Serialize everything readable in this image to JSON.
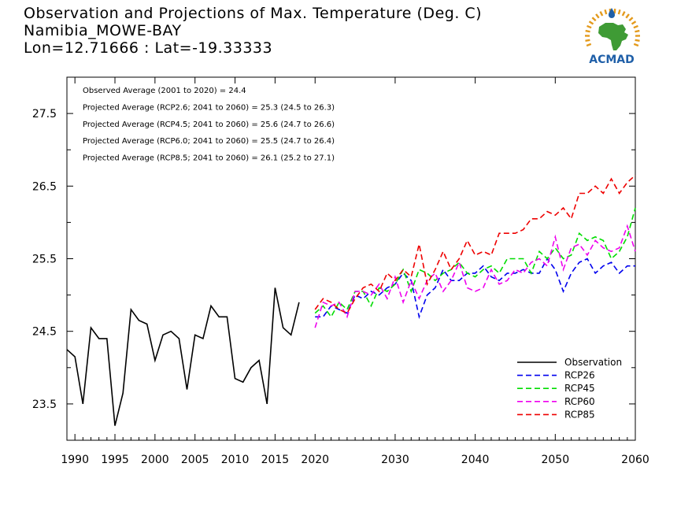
{
  "title_lines": [
    "Observation and Projections of Max. Temperature (Deg. C)",
    "Namibia_MOWE-BAY",
    "Lon=12.71666 : Lat=-19.33333"
  ],
  "logo": {
    "text": "ACMAD",
    "color_blue": "#1f5fa8",
    "color_green": "#3f9b35",
    "color_orange": "#e39a1c"
  },
  "chart_data": {
    "type": "line",
    "xlim": [
      1989,
      2060
    ],
    "ylim": [
      23.0,
      28.0
    ],
    "x_ticks": [
      1990,
      1995,
      2000,
      2005,
      2010,
      2015,
      2020,
      2030,
      2040,
      2050,
      2060
    ],
    "y_ticks": [
      23.5,
      24.5,
      25.5,
      26.5,
      27.5
    ],
    "y_minor_ticks": [
      24.0,
      25.0,
      26.0,
      27.0
    ],
    "grid": false,
    "legend_position": "bottom-right",
    "stats": [
      "Observed Average (2001 to 2020) = 24.4",
      "Projected Average (RCP2.6; 2041 to 2060) = 25.3 (24.5 to 26.3)",
      "Projected Average (RCP4.5; 2041 to 2060) = 25.6 (24.7 to 26.6)",
      "Projected Average (RCP6.0; 2041 to 2060) = 25.5 (24.7 to 26.4)",
      "Projected Average (RCP8.5; 2041 to 2060) = 26.1 (25.2 to 27.1)"
    ],
    "series": [
      {
        "name": "Observation",
        "color": "#000000",
        "dash": "solid",
        "x": [
          1989,
          1990,
          1991,
          1992,
          1993,
          1994,
          1995,
          1996,
          1997,
          1998,
          1999,
          2000,
          2001,
          2002,
          2003,
          2004,
          2005,
          2006,
          2007,
          2008,
          2009,
          2010,
          2011,
          2012,
          2013,
          2014,
          2015,
          2016,
          2017,
          2018,
          2019
        ],
        "values": [
          24.25,
          24.15,
          23.5,
          24.55,
          24.4,
          24.4,
          23.2,
          23.65,
          24.8,
          24.65,
          24.6,
          24.1,
          24.45,
          24.5,
          24.4,
          23.7,
          24.45,
          24.4,
          24.85,
          24.7,
          24.7,
          23.85,
          23.8,
          24.0,
          24.1,
          23.5,
          25.1,
          24.55,
          24.45,
          24.9,
          null
        ]
      },
      {
        "name": "RCP26",
        "color": "#0000ee",
        "dash": "dashed",
        "x": [
          2020,
          2021,
          2022,
          2023,
          2024,
          2025,
          2026,
          2027,
          2028,
          2029,
          2030,
          2031,
          2032,
          2033,
          2034,
          2035,
          2036,
          2037,
          2038,
          2039,
          2040,
          2041,
          2042,
          2043,
          2044,
          2045,
          2046,
          2047,
          2048,
          2049,
          2050,
          2051,
          2052,
          2053,
          2054,
          2055,
          2056,
          2057,
          2058,
          2059,
          2060
        ],
        "values": [
          24.7,
          24.7,
          24.85,
          24.8,
          24.75,
          25.0,
          24.95,
          25.05,
          25.0,
          25.1,
          25.15,
          25.3,
          25.2,
          24.7,
          25.0,
          25.1,
          25.35,
          25.2,
          25.2,
          25.3,
          25.3,
          25.4,
          25.25,
          25.2,
          25.3,
          25.3,
          25.35,
          25.3,
          25.3,
          25.5,
          25.35,
          25.05,
          25.3,
          25.45,
          25.5,
          25.3,
          25.4,
          25.45,
          25.3,
          25.4,
          25.4
        ]
      },
      {
        "name": "RCP45",
        "color": "#00dd00",
        "dash": "dashed",
        "x": [
          2020,
          2021,
          2022,
          2023,
          2024,
          2025,
          2026,
          2027,
          2028,
          2029,
          2030,
          2031,
          2032,
          2033,
          2034,
          2035,
          2036,
          2037,
          2038,
          2039,
          2040,
          2041,
          2042,
          2043,
          2044,
          2045,
          2046,
          2047,
          2048,
          2049,
          2050,
          2051,
          2052,
          2053,
          2054,
          2055,
          2056,
          2057,
          2058,
          2059,
          2060
        ],
        "values": [
          24.75,
          24.85,
          24.7,
          24.9,
          24.8,
          25.05,
          25.05,
          24.85,
          25.1,
          25.05,
          25.15,
          25.35,
          25.05,
          25.35,
          25.3,
          25.2,
          25.3,
          25.35,
          25.45,
          25.3,
          25.25,
          25.35,
          25.4,
          25.3,
          25.5,
          25.5,
          25.5,
          25.3,
          25.6,
          25.5,
          25.65,
          25.5,
          25.55,
          25.85,
          25.75,
          25.8,
          25.75,
          25.5,
          25.6,
          25.8,
          26.2
        ]
      },
      {
        "name": "RCP60",
        "color": "#ee00ee",
        "dash": "dashed",
        "x": [
          2020,
          2021,
          2022,
          2023,
          2024,
          2025,
          2026,
          2027,
          2028,
          2029,
          2030,
          2031,
          2032,
          2033,
          2034,
          2035,
          2036,
          2037,
          2038,
          2039,
          2040,
          2041,
          2042,
          2043,
          2044,
          2045,
          2046,
          2047,
          2048,
          2049,
          2050,
          2051,
          2052,
          2053,
          2054,
          2055,
          2056,
          2057,
          2058,
          2059,
          2060
        ],
        "values": [
          24.55,
          24.9,
          24.85,
          24.9,
          24.7,
          25.05,
          25.05,
          25.0,
          25.15,
          24.95,
          25.25,
          24.9,
          25.2,
          24.95,
          25.2,
          25.3,
          25.05,
          25.2,
          25.45,
          25.1,
          25.05,
          25.1,
          25.35,
          25.15,
          25.2,
          25.35,
          25.3,
          25.45,
          25.5,
          25.4,
          25.8,
          25.35,
          25.65,
          25.7,
          25.55,
          25.75,
          25.65,
          25.6,
          25.65,
          25.95,
          25.6
        ]
      },
      {
        "name": "RCP85",
        "color": "#ee0000",
        "dash": "dashed",
        "x": [
          2020,
          2021,
          2022,
          2023,
          2024,
          2025,
          2026,
          2027,
          2028,
          2029,
          2030,
          2031,
          2032,
          2033,
          2034,
          2035,
          2036,
          2037,
          2038,
          2039,
          2040,
          2041,
          2042,
          2043,
          2044,
          2045,
          2046,
          2047,
          2048,
          2049,
          2050,
          2051,
          2052,
          2053,
          2054,
          2055,
          2056,
          2057,
          2058,
          2059,
          2060
        ],
        "values": [
          24.8,
          24.95,
          24.9,
          24.8,
          24.75,
          24.95,
          25.1,
          25.15,
          25.05,
          25.3,
          25.2,
          25.35,
          25.25,
          25.7,
          25.15,
          25.35,
          25.6,
          25.35,
          25.5,
          25.75,
          25.55,
          25.6,
          25.55,
          25.85,
          25.85,
          25.85,
          25.9,
          26.05,
          26.05,
          26.15,
          26.1,
          26.2,
          26.05,
          26.4,
          26.4,
          26.5,
          26.4,
          26.6,
          26.4,
          26.55,
          26.65
        ]
      }
    ]
  }
}
